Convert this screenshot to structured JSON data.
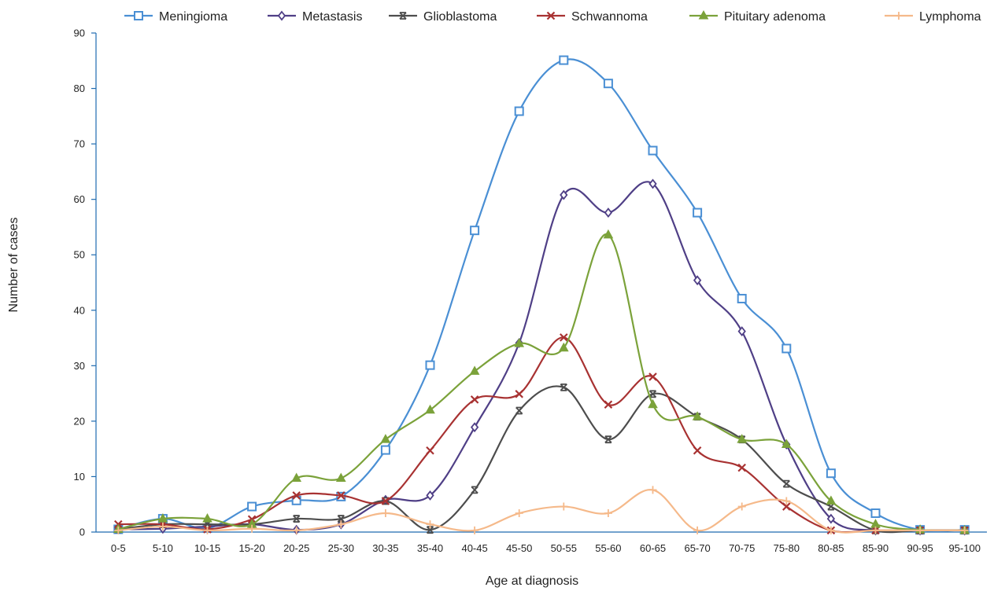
{
  "chart_data": {
    "type": "line",
    "title": "",
    "xlabel": "Age at diagnosis",
    "ylabel": "Number of cases",
    "ylim": [
      0,
      90
    ],
    "yticks": [
      0,
      10,
      20,
      30,
      40,
      50,
      60,
      70,
      80,
      90
    ],
    "grid": false,
    "legend_position": "top",
    "smooth": true,
    "categories": [
      "0-5",
      "5-10",
      "10-15",
      "15-20",
      "20-25",
      "25-30",
      "30-35",
      "35-40",
      "40-45",
      "45-50",
      "50-55",
      "55-60",
      "60-65",
      "65-70",
      "70-75",
      "75-80",
      "80-85",
      "85-90",
      "90-95",
      "95-100"
    ],
    "series": [
      {
        "name": "Meningioma",
        "color": "#4a8fd4",
        "marker": "square",
        "values": [
          0.5,
          2.4,
          0.7,
          4.6,
          5.7,
          6.4,
          14.8,
          30.1,
          54.4,
          75.9,
          85.1,
          80.9,
          68.8,
          57.6,
          42.1,
          33.1,
          10.6,
          3.4,
          0.4,
          0.4
        ]
      },
      {
        "name": "Metastasis",
        "color": "#4f3f86",
        "marker": "diamond",
        "values": [
          0.5,
          0.6,
          1.0,
          1.4,
          0.4,
          1.4,
          5.8,
          6.6,
          18.9,
          34.1,
          60.8,
          57.6,
          62.8,
          45.4,
          36.2,
          15.8,
          2.4,
          0.3,
          0.3,
          0.3
        ]
      },
      {
        "name": "Glioblastoma",
        "color": "#4d4d4d",
        "marker": "x-bar",
        "values": [
          0.5,
          1.4,
          1.4,
          1.4,
          2.4,
          2.4,
          5.6,
          0.4,
          7.6,
          21.9,
          26.1,
          16.7,
          24.9,
          20.8,
          16.7,
          8.7,
          4.6,
          0.3,
          0.3,
          0.3
        ]
      },
      {
        "name": "Schwannoma",
        "color": "#a83232",
        "marker": "x",
        "values": [
          1.4,
          1.4,
          0.5,
          2.3,
          6.6,
          6.6,
          5.6,
          14.7,
          23.9,
          24.9,
          35.1,
          23.0,
          28.0,
          14.7,
          11.6,
          4.6,
          0.3,
          0.3,
          0.3,
          0.3
        ]
      },
      {
        "name": "Pituitary adenoma",
        "color": "#7ba23a",
        "marker": "triangle",
        "values": [
          0.5,
          2.4,
          2.4,
          1.4,
          9.7,
          9.7,
          16.7,
          22.0,
          29.0,
          34.0,
          33.2,
          53.6,
          23.0,
          20.8,
          16.7,
          15.8,
          5.6,
          1.4,
          0.4,
          0.3
        ]
      },
      {
        "name": "Lymphoma",
        "color": "#f5b98a",
        "marker": "plus",
        "values": [
          0.3,
          1.0,
          0.3,
          0.6,
          0.3,
          1.4,
          3.4,
          1.4,
          0.3,
          3.4,
          4.6,
          3.4,
          7.6,
          0.3,
          4.6,
          5.6,
          0.3,
          0.3,
          0.3,
          0.3
        ]
      }
    ]
  }
}
